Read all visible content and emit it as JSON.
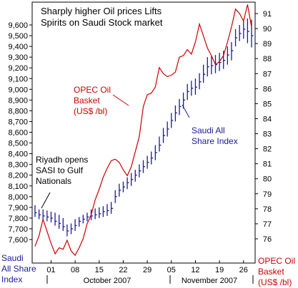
{
  "chart_data": {
    "type": "line",
    "title_lines": [
      "Sharply higher Oil prices Lifts",
      "Spirits on Saudi Stock market"
    ],
    "x_tick_labels": [
      "01",
      "08",
      "15",
      "22",
      "29",
      "05",
      "12",
      "19",
      "26"
    ],
    "month_labels": [
      "October 2007",
      "November 2007"
    ],
    "left_axis": {
      "label_lines": [
        "Saudi",
        "All Share",
        "Index"
      ],
      "ticks": [
        7600,
        7700,
        7800,
        7900,
        8000,
        8100,
        8200,
        8300,
        8400,
        8500,
        8600,
        8700,
        8800,
        8900,
        9000,
        9100,
        9200,
        9300,
        9400,
        9500,
        9600
      ],
      "tick_labels": [
        "7,600",
        "7,700",
        "7,800",
        "7,900",
        "8,000",
        "8,100",
        "8,200",
        "8,300",
        "8,400",
        "8,500",
        "8,600",
        "8,700",
        "8,800",
        "8,900",
        "9,000",
        "9,100",
        "9,200",
        "9,300",
        "9,400",
        "9,500",
        "9,600"
      ],
      "ylim": [
        7560,
        9680
      ]
    },
    "right_axis": {
      "label_lines": [
        "OPEC Oil",
        "Basket",
        "(US$ /bl)"
      ],
      "ticks": [
        76,
        77,
        78,
        79,
        80,
        81,
        82,
        83,
        84,
        85,
        86,
        87,
        88,
        89,
        90,
        91
      ],
      "ylim": [
        74.5,
        91.8
      ]
    },
    "annotations": [
      {
        "lines": [
          "OPEC Oil",
          "Basket",
          "(US$ /bl)"
        ],
        "color": "#cc0000"
      },
      {
        "lines": [
          "Saudi All",
          "Share Index"
        ],
        "color": "#1a1a9c"
      },
      {
        "lines": [
          "Riyadh opens",
          "SASI to Gulf",
          "Nationals"
        ],
        "color": "#000000"
      }
    ],
    "series": [
      {
        "name": "Saudi All Share Index",
        "kind": "hlc-bars",
        "color": "#1a1a9c",
        "axis": "left",
        "x": [
          "Sep 27",
          "Sep 28",
          "Sep 29",
          "Sep 30",
          "Oct 1",
          "Oct 2",
          "Oct 3",
          "Oct 4",
          "Oct 6",
          "Oct 7",
          "Oct 8",
          "Oct 9",
          "Oct 10",
          "Oct 11",
          "Oct 13",
          "Oct 14",
          "Oct 15",
          "Oct 16",
          "Oct 17",
          "Oct 18",
          "Oct 20",
          "Oct 21",
          "Oct 22",
          "Oct 23",
          "Oct 24",
          "Oct 25",
          "Oct 27",
          "Oct 28",
          "Oct 29",
          "Oct 30",
          "Oct 31",
          "Nov 1",
          "Nov 3",
          "Nov 4",
          "Nov 5",
          "Nov 6",
          "Nov 7",
          "Nov 8",
          "Nov 10",
          "Nov 11",
          "Nov 12",
          "Nov 13",
          "Nov 14",
          "Nov 15",
          "Nov 17",
          "Nov 18",
          "Nov 19",
          "Nov 20",
          "Nov 21",
          "Nov 22",
          "Nov 24",
          "Nov 25",
          "Nov 26",
          "Nov 27",
          "Nov 28"
        ],
        "high": [
          7920,
          7880,
          7880,
          7870,
          7860,
          7850,
          7830,
          7800,
          7740,
          7750,
          7790,
          7810,
          7830,
          7850,
          7880,
          7890,
          7900,
          7910,
          7930,
          7950,
          8060,
          8120,
          8140,
          8180,
          8220,
          8250,
          8300,
          8340,
          8380,
          8420,
          8480,
          8560,
          8640,
          8700,
          8780,
          8850,
          8910,
          8970,
          9050,
          9080,
          9100,
          9150,
          9230,
          9300,
          9310,
          9320,
          9340,
          9360,
          9400,
          9440,
          9560,
          9600,
          9640,
          9660,
          9650
        ],
        "low": [
          7810,
          7790,
          7780,
          7770,
          7760,
          7730,
          7700,
          7680,
          7630,
          7650,
          7680,
          7720,
          7750,
          7770,
          7780,
          7790,
          7800,
          7810,
          7820,
          7840,
          7940,
          8000,
          8040,
          8070,
          8100,
          8140,
          8180,
          8220,
          8260,
          8300,
          8340,
          8420,
          8500,
          8560,
          8640,
          8700,
          8760,
          8820,
          8900,
          8940,
          8950,
          9000,
          9060,
          9120,
          9140,
          9150,
          9170,
          9190,
          9230,
          9270,
          9400,
          9450,
          9470,
          9430,
          9390
        ],
        "close": [
          7850,
          7830,
          7820,
          7810,
          7800,
          7770,
          7750,
          7720,
          7680,
          7700,
          7730,
          7770,
          7790,
          7810,
          7820,
          7830,
          7840,
          7860,
          7870,
          7890,
          8000,
          8060,
          8090,
          8130,
          8160,
          8200,
          8240,
          8280,
          8320,
          8360,
          8410,
          8480,
          8570,
          8630,
          8710,
          8780,
          8840,
          8900,
          8980,
          9010,
          9020,
          9070,
          9140,
          9210,
          9220,
          9230,
          9250,
          9270,
          9320,
          9360,
          9480,
          9520,
          9560,
          9540,
          9500
        ]
      },
      {
        "name": "OPEC Oil Basket",
        "kind": "line",
        "color": "#cc0000",
        "axis": "right",
        "x": [
          "Sep 27",
          "Sep 28",
          "Sep 29",
          "Sep 30",
          "Oct 1",
          "Oct 2",
          "Oct 3",
          "Oct 4",
          "Oct 6",
          "Oct 7",
          "Oct 8",
          "Oct 9",
          "Oct 10",
          "Oct 11",
          "Oct 13",
          "Oct 14",
          "Oct 15",
          "Oct 16",
          "Oct 17",
          "Oct 18",
          "Oct 20",
          "Oct 21",
          "Oct 22",
          "Oct 23",
          "Oct 24",
          "Oct 25",
          "Oct 27",
          "Oct 28",
          "Oct 29",
          "Oct 30",
          "Oct 31",
          "Nov 1",
          "Nov 3",
          "Nov 4",
          "Nov 5",
          "Nov 6",
          "Nov 7",
          "Nov 8",
          "Nov 10",
          "Nov 11",
          "Nov 12",
          "Nov 13",
          "Nov 14",
          "Nov 15",
          "Nov 17",
          "Nov 18",
          "Nov 19",
          "Nov 20",
          "Nov 21",
          "Nov 22",
          "Nov 24",
          "Nov 25",
          "Nov 26",
          "Nov 27",
          "Nov 28"
        ],
        "values": [
          75.5,
          76.2,
          77.3,
          76.5,
          75.7,
          75.0,
          75.4,
          75.3,
          75.9,
          75.2,
          74.9,
          75.4,
          76.0,
          77.0,
          77.6,
          78.6,
          79.3,
          80.1,
          80.7,
          81.2,
          81.3,
          81.1,
          80.6,
          80.2,
          80.8,
          81.8,
          82.8,
          84.8,
          85.6,
          85.7,
          86.1,
          87.4,
          87.0,
          86.8,
          86.9,
          87.1,
          88.1,
          88.2,
          88.6,
          88.3,
          89.1,
          90.3,
          89.5,
          88.7,
          88.2,
          87.6,
          87.8,
          88.2,
          89.1,
          90.1,
          91.3,
          91.0,
          90.5,
          91.6,
          90.1
        ]
      }
    ],
    "grid": false,
    "legend": "none"
  }
}
